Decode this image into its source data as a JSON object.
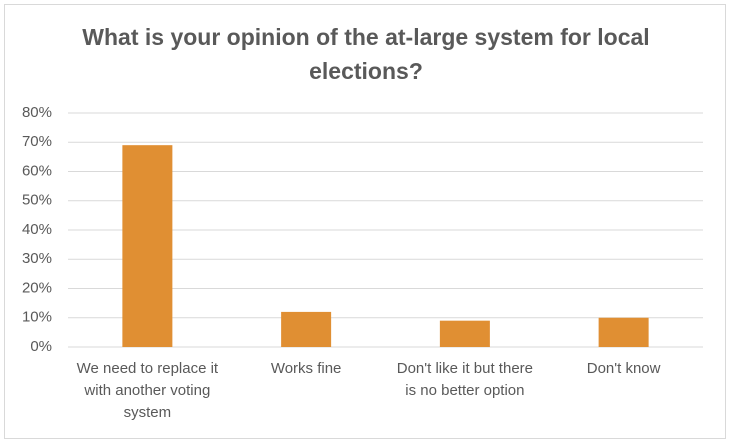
{
  "chart_data": {
    "type": "bar",
    "title": "What is your opinion of the at-large system for local elections?",
    "categories": [
      "We need to replace it with another voting system",
      "Works fine",
      "Don't like it but there is no better option",
      "Don't know"
    ],
    "values": [
      69,
      12,
      9,
      10
    ],
    "color": "#e08f33",
    "ylim": [
      0,
      80
    ],
    "yticks": [
      {
        "value": 0,
        "label": "0%"
      },
      {
        "value": 10,
        "label": "10%"
      },
      {
        "value": 20,
        "label": "20%"
      },
      {
        "value": 30,
        "label": "30%"
      },
      {
        "value": 40,
        "label": "40%"
      },
      {
        "value": 50,
        "label": "50%"
      },
      {
        "value": 60,
        "label": "60%"
      },
      {
        "value": 70,
        "label": "70%"
      },
      {
        "value": 80,
        "label": "80%"
      }
    ],
    "grid": true
  }
}
